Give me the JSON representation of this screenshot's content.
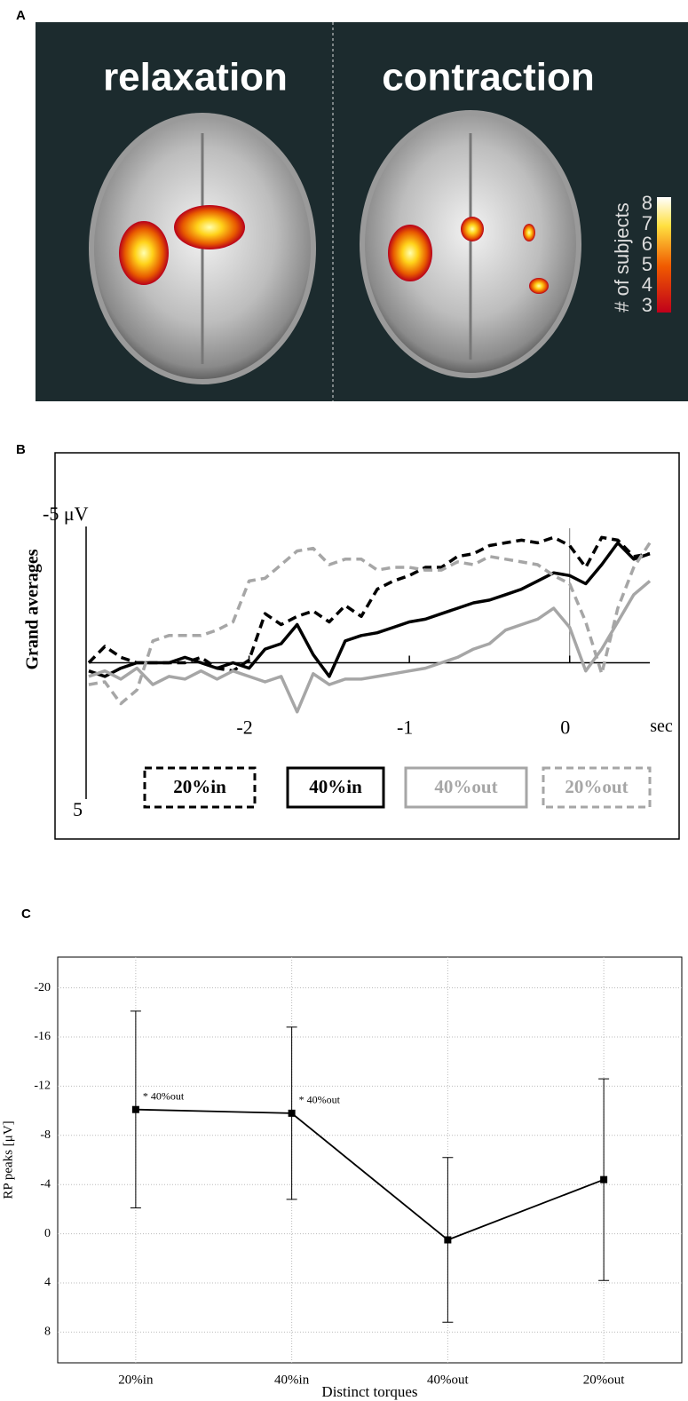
{
  "panel_a": {
    "label": "A",
    "titles": [
      "relaxation",
      "contraction"
    ],
    "colorbar": {
      "label": "# of subjects",
      "ticks": [
        8,
        7,
        6,
        5,
        4,
        3
      ]
    }
  },
  "chart_data": [
    {
      "type": "line",
      "panel_label": "B",
      "y_label": "Grand averages",
      "x_label": "sec",
      "x": [
        -3.0,
        -2.9,
        -2.8,
        -2.7,
        -2.6,
        -2.5,
        -2.4,
        -2.3,
        -2.2,
        -2.1,
        -2.0,
        -1.9,
        -1.8,
        -1.7,
        -1.6,
        -1.5,
        -1.4,
        -1.3,
        -1.2,
        -1.1,
        -1.0,
        -0.9,
        -0.8,
        -0.7,
        -0.6,
        -0.5,
        -0.4,
        -0.3,
        -0.2,
        -0.1,
        0.0,
        0.1,
        0.2,
        0.3,
        0.4,
        0.5
      ],
      "series": [
        {
          "name": "20%in",
          "color": "#000000",
          "dashed": true,
          "values": [
            0,
            -0.6,
            -0.2,
            0,
            0,
            0,
            0,
            -0.2,
            0.2,
            0.3,
            -0.1,
            -1.8,
            -1.4,
            -1.7,
            -1.9,
            -1.5,
            -2.1,
            -1.7,
            -2.7,
            -3.0,
            -3.2,
            -3.5,
            -3.5,
            -3.9,
            -4.0,
            -4.3,
            -4.4,
            -4.5,
            -4.4,
            -4.6,
            -4.3,
            -3.5,
            -4.6,
            -4.5,
            -3.9,
            -4.0
          ]
        },
        {
          "name": "40%in",
          "color": "#000000",
          "dashed": false,
          "values": [
            0.3,
            0.5,
            0.2,
            0,
            0,
            0,
            -0.2,
            0,
            0.2,
            0,
            0.2,
            -0.5,
            -0.7,
            -1.4,
            -0.3,
            0.5,
            -0.8,
            -1.0,
            -1.1,
            -1.3,
            -1.5,
            -1.6,
            -1.8,
            -2.0,
            -2.2,
            -2.3,
            -2.5,
            -2.7,
            -3.0,
            -3.3,
            -3.2,
            -2.9,
            -3.6,
            -4.4,
            -3.8,
            -4.0
          ]
        },
        {
          "name": "40%out",
          "color": "#a6a6a6",
          "dashed": false,
          "values": [
            0.5,
            0.3,
            0.6,
            0.2,
            0.8,
            0.5,
            0.6,
            0.3,
            0.6,
            0.3,
            0.5,
            0.7,
            0.5,
            1.8,
            0.4,
            0.8,
            0.6,
            0.6,
            0.5,
            0.4,
            0.3,
            0.2,
            0,
            -0.2,
            -0.5,
            -0.7,
            -1.2,
            -1.4,
            -1.6,
            -2.0,
            -1.3,
            0.3,
            -0.5,
            -1.5,
            -2.5,
            -3.0
          ]
        },
        {
          "name": "20%out",
          "color": "#a6a6a6",
          "dashed": true,
          "values": [
            0.8,
            0.7,
            1.5,
            1.0,
            -0.8,
            -1.0,
            -1.0,
            -1.0,
            -1.2,
            -1.5,
            -3.0,
            -3.1,
            -3.6,
            -4.1,
            -4.2,
            -3.6,
            -3.8,
            -3.8,
            -3.4,
            -3.5,
            -3.5,
            -3.4,
            -3.4,
            -3.7,
            -3.6,
            -3.9,
            -3.8,
            -3.7,
            -3.6,
            -3.2,
            -2.9,
            -1.5,
            0.4,
            -2.0,
            -3.5,
            -4.4
          ]
        }
      ],
      "xlim": [
        -3.0,
        0.5
      ],
      "xticks": [
        -2,
        -1,
        0
      ],
      "ylim": [
        -5,
        5
      ],
      "y_inverted": true,
      "yticks": [
        {
          "value": -5,
          "label": "-5 μV"
        },
        5
      ],
      "legend": "bottom",
      "grid": false
    },
    {
      "type": "line",
      "panel_label": "C",
      "x_label": "Distinct torques",
      "y_label": "RP peaks [μV]",
      "categories": [
        "20%in",
        "40%in",
        "40%out",
        "20%out"
      ],
      "values": [
        -10.1,
        -9.8,
        0.5,
        -4.4
      ],
      "errors": [
        8.0,
        7.0,
        6.7,
        8.2
      ],
      "color": "#000000",
      "annotations": [
        "* 40%out",
        "* 40%out"
      ],
      "ylim": [
        -22.5,
        10.5
      ],
      "y_inverted": true,
      "yticks": [
        -20,
        -16,
        -12,
        -8,
        -4,
        0,
        4,
        8
      ],
      "grid": true
    }
  ]
}
